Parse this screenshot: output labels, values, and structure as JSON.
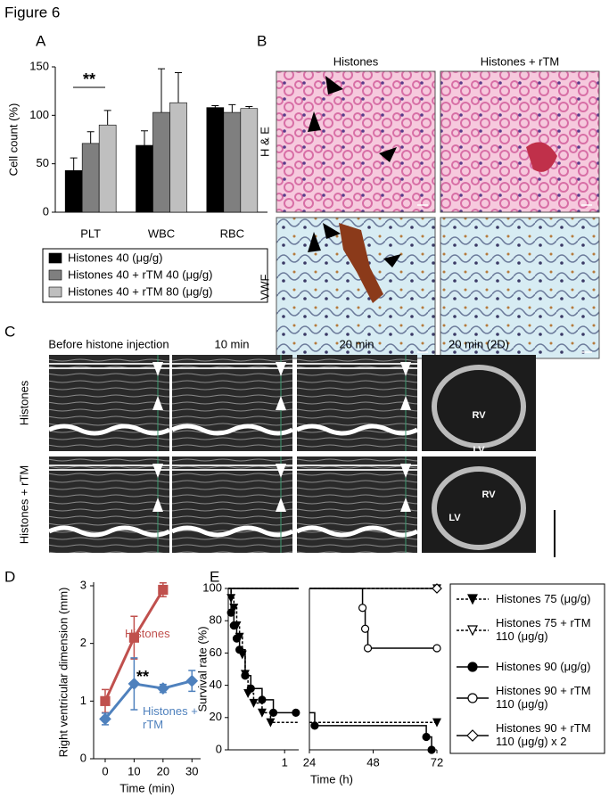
{
  "figure_title": "Figure 6",
  "panel_labels": [
    "A",
    "B",
    "C",
    "D",
    "E"
  ],
  "panel_b": {
    "columns": [
      "Histones",
      "Histones + rTM"
    ],
    "rows": [
      "H & E",
      "VWF"
    ]
  },
  "panel_c": {
    "columns": [
      "Before histone injection",
      "10 min",
      "20 min",
      "20 min (2D)"
    ],
    "rows": [
      "Histones",
      "Histones + rTM"
    ],
    "chambers": [
      "RV",
      "LV"
    ]
  },
  "chart_data": [
    {
      "type": "bar",
      "y_label": "Cell count (%)",
      "categories": [
        "PLT",
        "WBC",
        "RBC"
      ],
      "series": [
        {
          "name": "Histones 40 (μg/g)",
          "color": "#000000",
          "values": [
            43,
            69,
            108
          ],
          "errors": [
            13,
            15,
            2
          ]
        },
        {
          "name": "Histones 40 + rTM 40 (μg/g)",
          "color": "#7f7f7f",
          "values": [
            71,
            103,
            103
          ],
          "errors": [
            12,
            45,
            8
          ]
        },
        {
          "name": "Histones 40 + rTM 80 (μg/g)",
          "color": "#bfbfbf",
          "values": [
            90,
            113,
            107
          ],
          "errors": [
            15,
            31,
            2
          ]
        }
      ],
      "ylim": [
        0,
        150
      ],
      "yticks": [
        0,
        50,
        100,
        150
      ],
      "annotation": "**"
    },
    {
      "type": "line",
      "y_label": "Right ventricular dimension (mm)",
      "x_label": "Time (min)",
      "x": [
        0,
        10,
        20,
        30
      ],
      "series": [
        {
          "name": "Histones",
          "color": "#c0504d",
          "marker": "square",
          "values": [
            1.0,
            2.1,
            2.93,
            null
          ],
          "errors": [
            0.2,
            0.37,
            0.12,
            null
          ]
        },
        {
          "name": "Histones + rTM",
          "color": "#4f81bd",
          "marker": "diamond",
          "values": [
            0.69,
            1.3,
            1.22,
            1.35
          ],
          "errors": [
            0.1,
            0.45,
            0.07,
            0.18
          ]
        }
      ],
      "xlim": [
        -4,
        33
      ],
      "xticks": [
        0,
        10,
        20,
        30
      ],
      "ylim": [
        0,
        3
      ],
      "yticks": [
        0,
        1,
        2,
        3
      ],
      "annotation": "**"
    },
    {
      "type": "step",
      "y_label": "Survival rate (%)",
      "x_label": "Time (h)",
      "series": [
        {
          "name": "Histones 75 (μg/g)",
          "color": "#000000",
          "dash": true,
          "marker": "triangle-down-filled",
          "x": [
            0,
            0.05,
            0.1,
            0.15,
            0.2,
            0.25,
            0.3,
            0.35,
            0.45,
            0.6,
            0.75,
            72
          ],
          "values": [
            100,
            94,
            88,
            77,
            70,
            59,
            47,
            35,
            29,
            23,
            17,
            17
          ]
        },
        {
          "name": "Histones 75 + rTM 110 (μg/g)",
          "color": "#000000",
          "dash": true,
          "marker": "triangle-down-open",
          "x": [
            0,
            72
          ],
          "values": [
            100,
            100
          ]
        },
        {
          "name": "Histones 90 (μg/g)",
          "color": "#000000",
          "dash": false,
          "marker": "circle-filled",
          "x": [
            0,
            0.05,
            0.1,
            0.15,
            0.2,
            0.3,
            0.4,
            0.6,
            0.8,
            1.2,
            26,
            68,
            70
          ],
          "values": [
            100,
            85,
            77,
            69,
            62,
            46,
            38,
            31,
            23,
            23,
            15,
            8,
            0
          ]
        },
        {
          "name": "Histones 90 + rTM 110 (μg/g)",
          "color": "#000000",
          "dash": false,
          "marker": "circle-open",
          "x": [
            0,
            44,
            45,
            46,
            72
          ],
          "values": [
            100,
            88,
            75,
            63,
            63
          ]
        },
        {
          "name": "Histones 90 + rTM 110 (μg/g) x 2",
          "color": "#000000",
          "dash": false,
          "marker": "diamond-open",
          "x": [
            0,
            72
          ],
          "values": [
            100,
            100
          ]
        }
      ],
      "xlim_segments": [
        [
          0,
          1.25
        ],
        [
          24,
          72
        ]
      ],
      "xticks": [
        1,
        24,
        48,
        72
      ],
      "ylim": [
        0,
        100
      ],
      "yticks": [
        0,
        20,
        40,
        60,
        80,
        100
      ]
    }
  ]
}
